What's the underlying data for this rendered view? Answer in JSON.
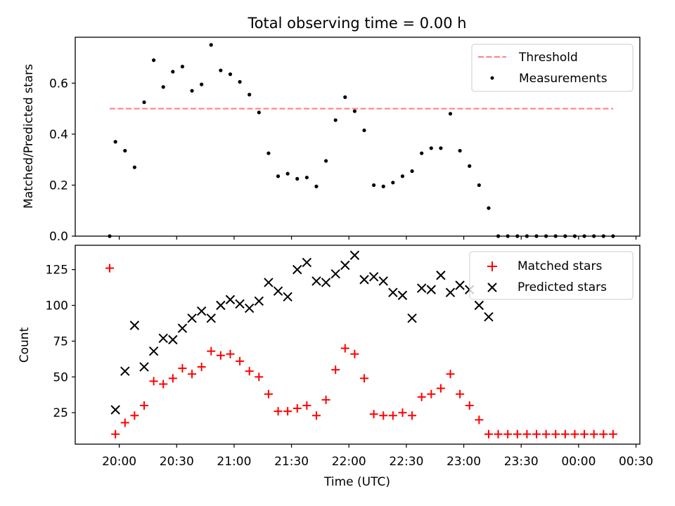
{
  "chart_data": [
    {
      "type": "scatter",
      "title": "Total observing time = 0.00 h",
      "xlabel": "",
      "ylabel": "Matched/Predicted stars",
      "ylim": [
        0,
        0.78
      ],
      "yticks": [
        0.0,
        0.2,
        0.4,
        0.6
      ],
      "ytick_labels": [
        "0.0",
        "0.2",
        "0.4",
        "0.6"
      ],
      "legend_position": "top-right",
      "threshold": {
        "name": "Threshold",
        "value": 0.5,
        "x_start": "19:55",
        "x_end": "00:18",
        "color": "#ff7f7f"
      },
      "series": [
        {
          "name": "Measurements",
          "color": "#000000",
          "x": [
            "19:55",
            "19:58",
            "20:03",
            "20:08",
            "20:13",
            "20:18",
            "20:23",
            "20:28",
            "20:33",
            "20:38",
            "20:43",
            "20:48",
            "20:53",
            "20:58",
            "21:03",
            "21:08",
            "21:13",
            "21:18",
            "21:23",
            "21:28",
            "21:33",
            "21:38",
            "21:43",
            "21:48",
            "21:53",
            "21:58",
            "22:03",
            "22:08",
            "22:13",
            "22:18",
            "22:23",
            "22:28",
            "22:33",
            "22:38",
            "22:43",
            "22:48",
            "22:53",
            "22:58",
            "23:03",
            "23:08",
            "23:13",
            "23:18",
            "23:23",
            "23:28",
            "23:33",
            "23:38",
            "23:43",
            "23:48",
            "23:53",
            "23:58",
            "00:03",
            "00:08",
            "00:13",
            "00:18"
          ],
          "y": [
            0.0,
            0.37,
            0.335,
            0.27,
            0.525,
            0.69,
            0.585,
            0.645,
            0.665,
            0.57,
            0.595,
            0.75,
            0.65,
            0.635,
            0.605,
            0.555,
            0.485,
            0.325,
            0.235,
            0.245,
            0.225,
            0.23,
            0.195,
            0.295,
            0.455,
            0.545,
            0.49,
            0.415,
            0.2,
            0.195,
            0.21,
            0.235,
            0.255,
            0.325,
            0.345,
            0.345,
            0.48,
            0.335,
            0.275,
            0.2,
            0.11,
            0.0,
            0.0,
            0.0,
            0.0,
            0.0,
            0.0,
            0.0,
            0.0,
            0.0,
            0.0,
            0.0,
            0.0,
            0.0
          ]
        }
      ]
    },
    {
      "type": "scatter",
      "title": "",
      "xlabel": "Time (UTC)",
      "ylabel": "Count",
      "ylim": [
        3,
        142
      ],
      "yticks": [
        25,
        50,
        75,
        100,
        125
      ],
      "ytick_labels": [
        "25",
        "50",
        "75",
        "100",
        "125"
      ],
      "xlim": [
        "19:37",
        "00:32"
      ],
      "xticks": [
        "20:00",
        "20:30",
        "21:00",
        "21:30",
        "22:00",
        "22:30",
        "23:00",
        "23:30",
        "00:00",
        "00:30"
      ],
      "legend_position": "top-right",
      "series": [
        {
          "name": "Matched stars",
          "marker": "plus",
          "color": "#ff0000",
          "x": [
            "19:55",
            "19:58",
            "20:03",
            "20:08",
            "20:13",
            "20:18",
            "20:23",
            "20:28",
            "20:33",
            "20:38",
            "20:43",
            "20:48",
            "20:53",
            "20:58",
            "21:03",
            "21:08",
            "21:13",
            "21:18",
            "21:23",
            "21:28",
            "21:33",
            "21:38",
            "21:43",
            "21:48",
            "21:53",
            "21:58",
            "22:03",
            "22:08",
            "22:13",
            "22:18",
            "22:23",
            "22:28",
            "22:33",
            "22:38",
            "22:43",
            "22:48",
            "22:53",
            "22:58",
            "23:03",
            "23:08",
            "23:13",
            "23:18",
            "23:23",
            "23:28",
            "23:33",
            "23:38",
            "23:43",
            "23:48",
            "23:53",
            "23:58",
            "00:03",
            "00:08",
            "00:13",
            "00:18"
          ],
          "y": [
            126,
            10,
            18,
            23,
            30,
            47,
            45,
            49,
            56,
            52,
            57,
            68,
            65,
            66,
            61,
            54,
            50,
            38,
            26,
            26,
            28,
            30,
            23,
            34,
            55,
            70,
            66,
            49,
            24,
            23,
            23,
            25,
            23,
            36,
            38,
            42,
            52,
            38,
            30,
            20,
            10,
            10,
            10,
            10,
            10,
            10,
            10,
            10,
            10,
            10,
            10,
            10,
            10,
            10
          ]
        },
        {
          "name": "Predicted stars",
          "marker": "x",
          "color": "#000000",
          "x": [
            "19:58",
            "20:03",
            "20:08",
            "20:13",
            "20:18",
            "20:23",
            "20:28",
            "20:33",
            "20:38",
            "20:43",
            "20:48",
            "20:53",
            "20:58",
            "21:03",
            "21:08",
            "21:13",
            "21:18",
            "21:23",
            "21:28",
            "21:33",
            "21:38",
            "21:43",
            "21:48",
            "21:53",
            "21:58",
            "22:03",
            "22:08",
            "22:13",
            "22:18",
            "22:23",
            "22:28",
            "22:33",
            "22:38",
            "22:43",
            "22:48",
            "22:53",
            "22:58",
            "23:03",
            "23:08",
            "23:13"
          ],
          "y": [
            27,
            54,
            86,
            57,
            68,
            77,
            76,
            84,
            91,
            96,
            91,
            100,
            104,
            101,
            98,
            103,
            116,
            110,
            106,
            125,
            130,
            117,
            116,
            122,
            128,
            135,
            118,
            120,
            117,
            109,
            107,
            91,
            112,
            111,
            121,
            109,
            114,
            111,
            100,
            92
          ]
        }
      ]
    }
  ]
}
